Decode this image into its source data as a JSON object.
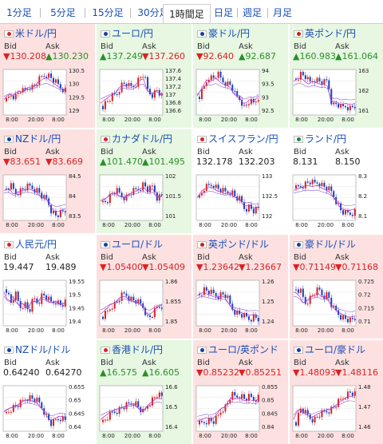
{
  "timeframe_tabs": [
    {
      "label": "1分足",
      "active": false
    },
    {
      "label": "5分足",
      "active": false
    },
    {
      "label": "15分足",
      "active": false
    },
    {
      "label": "30分足",
      "active": false
    },
    {
      "label": "1時間足",
      "active": true
    },
    {
      "label": "日足",
      "active": false
    },
    {
      "label": "週足",
      "active": false
    },
    {
      "label": "月足",
      "active": false
    }
  ],
  "bid_label": "Bid",
  "ask_label": "Ask",
  "colors": {
    "up_bg": "#e7f7e2",
    "down_bg": "#fde1e1",
    "up_text": "#2a8f2a",
    "down_text": "#d22222",
    "link": "#1a4fb5"
  },
  "quotes": [
    {
      "pair": "米ドル/円",
      "trend": "down",
      "bid": "▼130.208",
      "ask": "▲130.230",
      "yticks": [
        "130.5",
        "130",
        "129.5",
        "129"
      ],
      "xticks": [
        "8:00",
        "20:00",
        "8:00"
      ]
    },
    {
      "pair": "ユーロ/円",
      "trend": "up",
      "bid": "▲137.249",
      "ask": "▼137.260",
      "yticks": [
        "137.6",
        "137.4",
        "137.2",
        "137",
        "136.8",
        "136.6"
      ],
      "xticks": [
        "8:00",
        "20:00",
        "8:00"
      ]
    },
    {
      "pair": "豪ドル/円",
      "trend": "up",
      "bid": "▼92.640",
      "ask": "▲92.687",
      "yticks": [
        "94",
        "93.5",
        "93",
        "92.5"
      ],
      "xticks": [
        "8:00",
        "20:00",
        "8:00"
      ]
    },
    {
      "pair": "英ポンド/円",
      "trend": "up",
      "bid": "▲160.983",
      "ask": "▲161.064",
      "yticks": [
        "163",
        "162",
        "161"
      ],
      "xticks": [
        "8:00",
        "20:00",
        "8:00"
      ]
    },
    {
      "pair": "NZドル/円",
      "trend": "down",
      "bid": "▼83.651",
      "ask": "▼83.669",
      "yticks": [
        "84.5",
        "84",
        "83.5"
      ],
      "xticks": [
        "8:00",
        "20:00",
        "8:00"
      ]
    },
    {
      "pair": "カナダドル/円",
      "trend": "up",
      "bid": "▲101.470",
      "ask": "▲101.495",
      "yticks": [
        "102",
        "101.5",
        "101"
      ],
      "xticks": [
        "8:00",
        "20:00",
        "8:00"
      ]
    },
    {
      "pair": "スイスフラン/円",
      "trend": "flat",
      "bid": "132.178",
      "ask": "132.203",
      "yticks": [
        "133",
        "132.5",
        "132"
      ],
      "xticks": [
        "8:00",
        "20:00",
        "8:00"
      ]
    },
    {
      "pair": "ランド/円",
      "trend": "flat",
      "bid": "8.131",
      "ask": "8.150",
      "yticks": [
        "8.3",
        "8.2",
        "8.1"
      ],
      "xticks": [
        "8:00",
        "20:00",
        "8:00"
      ]
    },
    {
      "pair": "人民元/円",
      "trend": "flat",
      "bid": "19.447",
      "ask": "19.489",
      "yticks": [
        "19.55",
        "19.5",
        "19.45",
        "19.4"
      ],
      "xticks": [
        "8:00",
        "20:00",
        "8:00"
      ]
    },
    {
      "pair": "ユーロ/ドル",
      "trend": "down",
      "bid": "▼1.05400",
      "ask": "▼1.05409",
      "yticks": [
        "1.86",
        "1.855",
        "1.85"
      ],
      "xticks": [
        "8:00",
        "20:00",
        "8:00"
      ]
    },
    {
      "pair": "英ポンド/ドル",
      "trend": "down",
      "bid": "▼1.23642",
      "ask": "▼1.23667",
      "yticks": [
        "1.26",
        "1.25",
        "1.24"
      ],
      "xticks": [
        "8:00",
        "20:00",
        "8:00"
      ]
    },
    {
      "pair": "豪ドル/ドル",
      "trend": "down",
      "bid": "▼0.71149",
      "ask": "▼0.71168",
      "yticks": [
        "0.725",
        "0.72",
        "0.715",
        "0.71"
      ],
      "xticks": [
        "8:00",
        "20:00",
        "8:00"
      ]
    },
    {
      "pair": "NZドル/ドル",
      "trend": "flat",
      "bid": "0.64240",
      "ask": "0.64270",
      "yticks": [
        "0.655",
        "0.65",
        "0.645",
        "0.64"
      ],
      "xticks": [
        "8:00",
        "20:00",
        "8:00"
      ]
    },
    {
      "pair": "香港ドル/円",
      "trend": "up",
      "bid": "▲16.575",
      "ask": "▲16.605",
      "yticks": [
        "16.6",
        "16.5",
        "16.4"
      ],
      "xticks": [
        "8:00",
        "20:00",
        "8:00"
      ]
    },
    {
      "pair": "ユーロ/英ポンド",
      "trend": "down",
      "bid": "▼0.85232",
      "ask": "▼0.85251",
      "yticks": [
        "0.855",
        "0.85",
        "0.845",
        "0.84"
      ],
      "xticks": [
        "8:00",
        "20:00",
        "8:00"
      ]
    },
    {
      "pair": "ユーロ/豪ドル",
      "trend": "down",
      "bid": "▼1.48093",
      "ask": "▼1.48116",
      "yticks": [
        "1.48",
        "1.47",
        "1.46"
      ],
      "xticks": [
        "8:00",
        "20:00",
        "8:00"
      ]
    }
  ]
}
